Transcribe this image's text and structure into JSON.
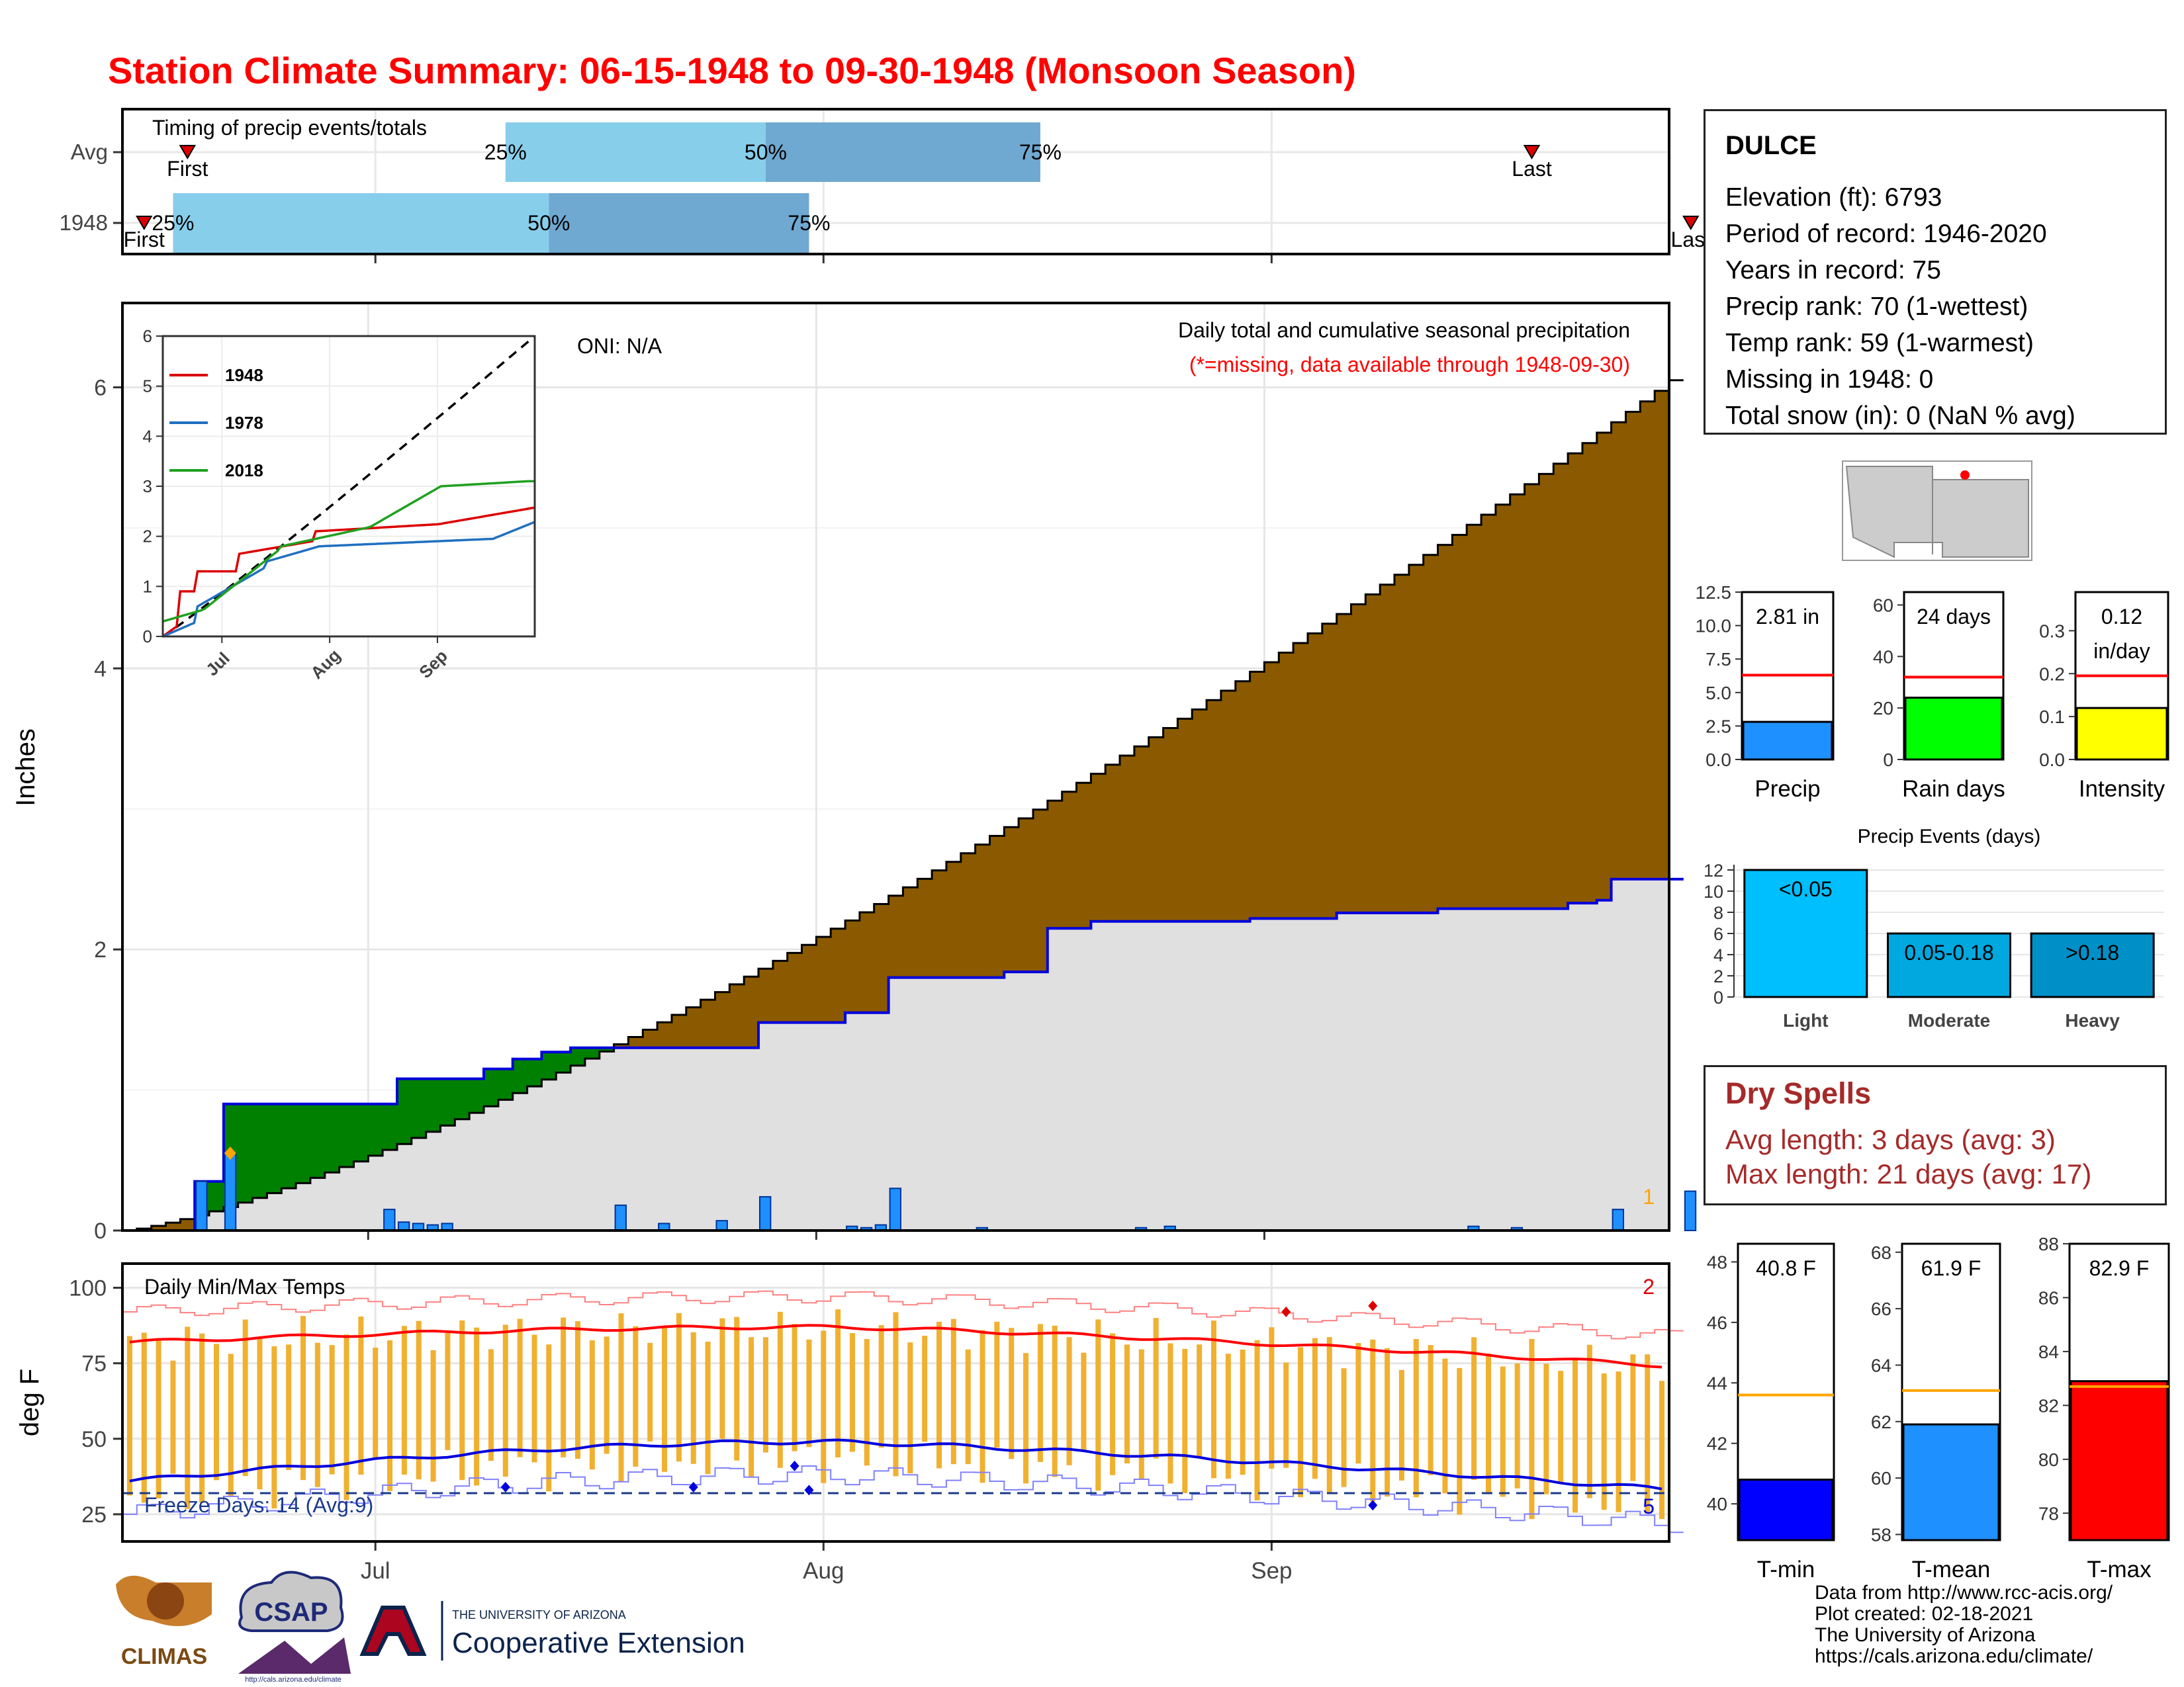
{
  "title": "Station Climate Summary: 06-15-1948 to 09-30-1948 (Monsoon Season)",
  "colors": {
    "title": "#ff0000",
    "timing_light": "#87ceeb",
    "timing_dark": "#6fa8d0",
    "cum_above": "#8b5a00",
    "cum_below_fill": "#008000",
    "cum_normal_fill": "#e0e0e0",
    "daily_bar": "#1e90ff",
    "temp_range": "#f0b030",
    "avg_max_line": "#ff0000",
    "avg_min_line": "#0000dd",
    "record_max": "#ff8080",
    "record_min": "#8080ff",
    "dry_spells": "#a52a2a"
  },
  "station": {
    "name": "DULCE",
    "lines": [
      "Elevation (ft): 6793",
      "Period of record: 1946-2020",
      "Years in record: 75",
      "Precip rank: 70 (1-wettest)",
      "Temp rank: 59 (1-warmest)",
      "Missing in 1948: 0",
      "Total snow (in): 0 (NaN % avg)"
    ]
  },
  "dry_spells": {
    "title": "Dry Spells",
    "avg": "Avg length: 3 days (avg: 3)",
    "max": "Max length: 21 days (avg: 17)"
  },
  "credits": [
    "Data from http://www.rcc-acis.org/",
    "Plot created: 02-18-2021",
    "The University of Arizona",
    "https://cals.arizona.edu/climate/"
  ],
  "logos": {
    "climas": "CLIMAS",
    "csap": "CSAP",
    "csap_url": "http://cals.arizona.edu/climate",
    "ua_small": "THE UNIVERSITY OF ARIZONA",
    "ua_big": "Cooperative Extension"
  },
  "chart_data": [
    {
      "id": "timing",
      "type": "bar",
      "title": "Timing of precip events/totals",
      "categories": [
        "Avg",
        "1948"
      ],
      "x_axis": "date",
      "x_range": [
        "06-15",
        "09-30"
      ],
      "series": [
        {
          "category": "Avg",
          "first": "06-18",
          "last": "09-19",
          "p25": "07-10",
          "p50": "07-28",
          "p75": "08-16",
          "labels": {
            "first": "First",
            "last": "Last",
            "p25": "25%",
            "p50": "50%",
            "p75": "75%"
          }
        },
        {
          "category": "1948",
          "first": "06-15",
          "last": "09-30",
          "p25": "06-17",
          "p50": "07-13",
          "p75": "07-31",
          "labels": {
            "first": "First",
            "last": "Last",
            "p25": "25%",
            "p50": "50%",
            "p75": "75%"
          }
        }
      ]
    },
    {
      "id": "precip",
      "type": "area",
      "title": "Daily total and cumulative seasonal precipitation",
      "subtitle": "(*=missing, data available through 1948-09-30)",
      "annotation": "ONI: N/A",
      "ylabel": "Inches",
      "ylim": [
        0,
        6.6
      ],
      "yticks": [
        0,
        2,
        4,
        6
      ],
      "xticks": [
        "Jul",
        "Aug",
        "Sep"
      ],
      "xtick_dates": [
        "07-01",
        "08-01",
        "09-01"
      ],
      "x_range": [
        "06-15",
        "09-30"
      ],
      "record_count_label": "1",
      "normal_cum_end": 6.05,
      "observed_cum_points": [
        [
          "06-15",
          0
        ],
        [
          "06-19",
          0.35
        ],
        [
          "06-21",
          0.9
        ],
        [
          "07-03",
          1.08
        ],
        [
          "07-09",
          1.15
        ],
        [
          "07-11",
          1.22
        ],
        [
          "07-13",
          1.27
        ],
        [
          "07-15",
          1.3
        ],
        [
          "07-25",
          1.3
        ],
        [
          "07-28",
          1.48
        ],
        [
          "07-31",
          1.48
        ],
        [
          "08-03",
          1.55
        ],
        [
          "08-06",
          1.8
        ],
        [
          "08-14",
          1.84
        ],
        [
          "08-17",
          2.15
        ],
        [
          "08-19",
          2.15
        ],
        [
          "08-20",
          2.2
        ],
        [
          "08-31",
          2.22
        ],
        [
          "09-06",
          2.26
        ],
        [
          "09-13",
          2.29
        ],
        [
          "09-22",
          2.33
        ],
        [
          "09-24",
          2.35
        ],
        [
          "09-25",
          2.5
        ],
        [
          "09-30",
          2.8
        ]
      ],
      "daily_bars": [
        [
          "06-19",
          0.35
        ],
        [
          "06-21",
          0.55
        ],
        [
          "07-02",
          0.15
        ],
        [
          "07-03",
          0.06
        ],
        [
          "07-04",
          0.05
        ],
        [
          "07-05",
          0.04
        ],
        [
          "07-06",
          0.05
        ],
        [
          "07-18",
          0.18
        ],
        [
          "07-21",
          0.05
        ],
        [
          "07-25",
          0.07
        ],
        [
          "07-28",
          0.24
        ],
        [
          "08-03",
          0.03
        ],
        [
          "08-04",
          0.02
        ],
        [
          "08-05",
          0.04
        ],
        [
          "08-06",
          0.3
        ],
        [
          "08-12",
          0.02
        ],
        [
          "08-23",
          0.02
        ],
        [
          "08-25",
          0.03
        ],
        [
          "09-15",
          0.03
        ],
        [
          "09-18",
          0.02
        ],
        [
          "09-25",
          0.15
        ],
        [
          "09-30",
          0.28
        ]
      ],
      "record_marker": [
        "06-21",
        0.55
      ]
    },
    {
      "id": "inset",
      "type": "line",
      "ylim": [
        0,
        6
      ],
      "yticks": [
        0,
        1,
        2,
        3,
        4,
        5,
        6
      ],
      "xticks": [
        "Jul",
        "Aug",
        "Sep"
      ],
      "series": [
        {
          "name": "1948",
          "color": "#dd0000"
        },
        {
          "name": "1978",
          "color": "#2070c0"
        },
        {
          "name": "2018",
          "color": "#20a020"
        }
      ]
    },
    {
      "id": "temps",
      "type": "bar",
      "title": "Daily Min/Max Temps",
      "ylabel": "deg F",
      "ylim": [
        16,
        108
      ],
      "yticks": [
        25,
        50,
        75,
        100
      ],
      "xticks": [
        "Jul",
        "Aug",
        "Sep"
      ],
      "freeze_label": "Freeze Days: 14 (Avg:9)",
      "record_high_count": "2",
      "record_low_count": "5",
      "freeze_line": 32,
      "avg_max_start": 82,
      "avg_max_peak": 87,
      "avg_max_end": 74,
      "avg_min_start": 36,
      "avg_min_peak": 49,
      "avg_min_end": 33
    },
    {
      "id": "season_precip",
      "type": "bar",
      "categories": [
        "Precip",
        "Rain days",
        "Intensity"
      ],
      "panels": [
        {
          "label": "Precip",
          "value": 2.81,
          "text": "2.81 in",
          "avg": 6.3,
          "ylim": [
            0,
            12.5
          ],
          "yticks": [
            "0.0",
            "2.5",
            "5.0",
            "7.5",
            "10.0",
            "12.5"
          ],
          "color": "#1e90ff"
        },
        {
          "label": "Rain days",
          "value": 24,
          "text": "24 days",
          "avg": 32,
          "ylim": [
            0,
            65
          ],
          "yticks": [
            "0",
            "20",
            "40",
            "60"
          ],
          "color": "#00ff00"
        },
        {
          "label": "Intensity",
          "value": 0.12,
          "text": "0.12",
          "text2": "in/day",
          "avg": 0.195,
          "ylim": [
            0,
            0.39
          ],
          "yticks": [
            "0.0",
            "0.1",
            "0.2",
            "0.3"
          ],
          "color": "#ffff00"
        }
      ]
    },
    {
      "id": "precip_events",
      "type": "bar",
      "title": "Precip Events (days)",
      "categories": [
        "Light",
        "Moderate",
        "Heavy"
      ],
      "values": [
        12,
        6,
        6
      ],
      "value_labels": [
        "<0.05",
        "0.05-0.18",
        ">0.18"
      ],
      "ylim": [
        0,
        12.5
      ],
      "yticks": [
        "0",
        "2",
        "4",
        "6",
        "8",
        "10",
        "12"
      ],
      "colors": [
        "#00bfff",
        "#00a8e0",
        "#0090c8"
      ]
    },
    {
      "id": "season_temps",
      "type": "bar",
      "categories": [
        "T-min",
        "T-mean",
        "T-max"
      ],
      "panels": [
        {
          "label": "T-min",
          "value": 40.8,
          "text": "40.8 F",
          "avg": 43.6,
          "ylim": [
            38.8,
            48.6
          ],
          "yticks": [
            "40",
            "42",
            "44",
            "46",
            "48"
          ],
          "color": "#0000ff"
        },
        {
          "label": "T-mean",
          "value": 61.9,
          "text": "61.9 F",
          "avg": 63.1,
          "ylim": [
            57.8,
            68.3
          ],
          "yticks": [
            "58",
            "60",
            "62",
            "64",
            "66",
            "68"
          ],
          "color": "#1e90ff"
        },
        {
          "label": "T-max",
          "value": 82.9,
          "text": "82.9 F",
          "avg": 82.7,
          "ylim": [
            77.0,
            88.0
          ],
          "yticks": [
            "78",
            "80",
            "82",
            "84",
            "86",
            "88"
          ],
          "color": "#ff0000"
        }
      ]
    }
  ]
}
